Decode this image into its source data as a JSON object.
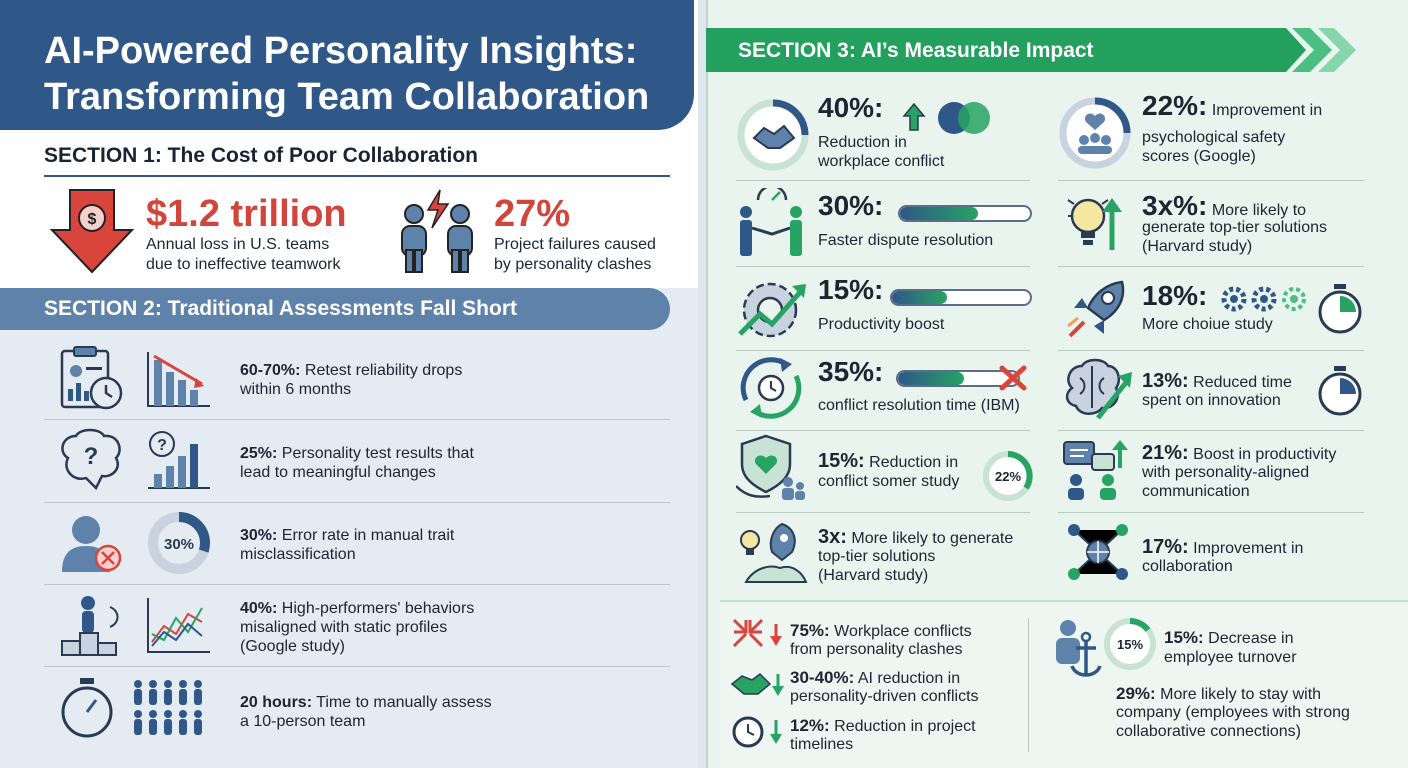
{
  "title": {
    "line1": "AI-Powered Personality Insights:",
    "line2": "Transforming Team Collaboration"
  },
  "colors": {
    "navy": "#2f5787",
    "red": "#d2453d",
    "green": "#27a363",
    "section2": "#5f82aa"
  },
  "section1": {
    "heading": "SECTION 1: The Cost of Poor Collaboration",
    "stats": [
      {
        "value": "$1.2 trillion",
        "line1": "Annual loss in U.S. teams",
        "line2": "due to ineffective teamwork",
        "icon": "down-arrow-dollar-icon"
      },
      {
        "value": "27%",
        "line1": "Project failures caused",
        "line2": "by personality clashes",
        "icon": "clashing-people-icon"
      }
    ]
  },
  "section2": {
    "heading": "SECTION 2: Traditional Assessments Fall Short",
    "rows": [
      {
        "bold": "60-70%:",
        "text1": " Retest reliability drops",
        "text2": "within 6 months",
        "text3": ""
      },
      {
        "bold": "25%:",
        "text1": " Personality test results that",
        "text2": "lead to meaningful changes",
        "text3": ""
      },
      {
        "bold": "30%:",
        "text1": " Error rate in manual trait",
        "text2": "misclassification",
        "text3": "",
        "donut_label": "30%"
      },
      {
        "bold": "40%:",
        "text1": " High-performers' behaviors",
        "text2": "misaligned with static profiles",
        "text3": "(Google study)"
      },
      {
        "bold": "20 hours:",
        "text1": " Time to manually assess",
        "text2": "a 10-person team",
        "text3": ""
      }
    ]
  },
  "section3": {
    "heading": "SECTION 3: AI’s Measurable Impact",
    "left": [
      {
        "pct": "40%:",
        "l1": "Reduction in",
        "l2": "workplace conflict",
        "l3": ""
      },
      {
        "pct": "30%:",
        "l1": "Faster dispute resolution",
        "l2": "",
        "l3": "",
        "bar": 0.6
      },
      {
        "pct": "15%:",
        "l1": "Productivity boost",
        "l2": "",
        "l3": "",
        "bar": 0.4
      },
      {
        "pct": "35%:",
        "l1": "conflict resolution time (IBM)",
        "l2": "",
        "l3": "",
        "bar": 0.55
      },
      {
        "pct": "15%:",
        "l1": "Reduction in",
        "l2": "conflict somer study",
        "l3": "",
        "badge": "22%"
      },
      {
        "pct": "3x:",
        "l1": "More likely to generate",
        "l2": "top-tier solutions",
        "l3": "(Harvard study)"
      }
    ],
    "right": [
      {
        "pct": "22%:",
        "l1": "Improvement in",
        "l2": "psychological safety",
        "l3": "scores (Google)"
      },
      {
        "pct": "3x%:",
        "l1": "More likely to",
        "l2": "generate top-tier solutions",
        "l3": "(Harvard study)"
      },
      {
        "pct": "18%:",
        "l1": "More choiue study",
        "l2": "",
        "l3": ""
      },
      {
        "pct": "13%:",
        "l1": "Reduced time",
        "l2": "spent on innovation",
        "l3": ""
      },
      {
        "pct": "21%:",
        "l1": "Boost in productivity",
        "l2": "with personality-aligned",
        "l3": "communication"
      },
      {
        "pct": "17%:",
        "l1": "Improvement in",
        "l2": "collaboration",
        "l3": ""
      }
    ],
    "bottom_left": [
      {
        "pct": "75%:",
        "l1": " Workplace conflicts",
        "l2": "from personality clashes"
      },
      {
        "pct": "30-40%:",
        "l1": " AI reduction in",
        "l2": "personality-driven conflicts"
      },
      {
        "pct": "12%:",
        "l1": " Reduction in project",
        "l2": "timelines"
      }
    ],
    "bottom_right": {
      "donut_label": "15%",
      "stat1_pct": "15%:",
      "stat1_l1": " Decrease in",
      "stat1_l2": "employee turnover",
      "stat2_pct": "29%:",
      "stat2_l1": " More likely to stay with",
      "stat2_l2": "company (employees with strong",
      "stat2_l3": "collaborative connections)"
    }
  }
}
